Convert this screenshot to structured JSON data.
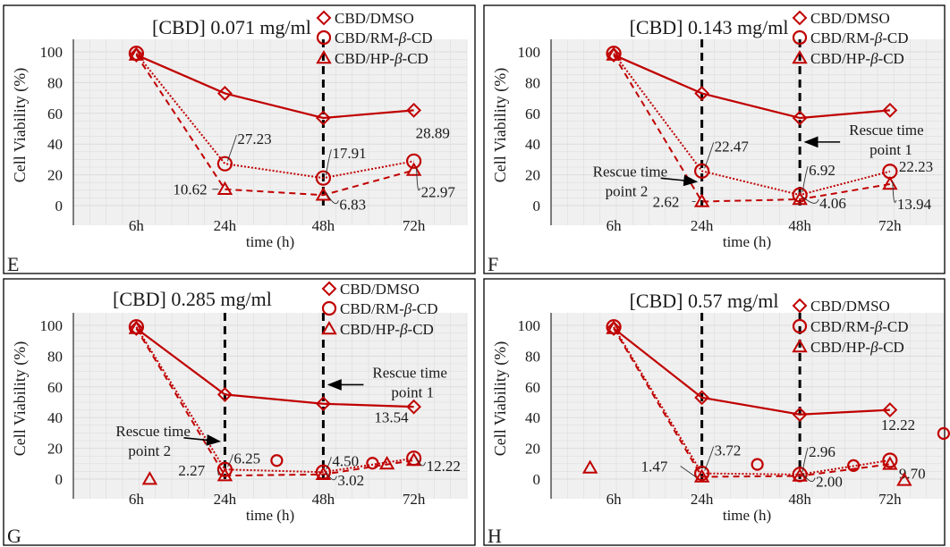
{
  "colors": {
    "series": "#c00000",
    "axis": "#000000",
    "grid": "#dcdcdc",
    "plot_bg": "#f0f0f0"
  },
  "chart_data": [
    {
      "letter": "E",
      "title": "[CBD] 0.071 mg/ml",
      "type": "line",
      "xlabel": "time (h)",
      "ylabel": "Cell Viability (%)",
      "categories": [
        "6h",
        "24h",
        "48h",
        "72h"
      ],
      "yticks": [
        "0",
        "20",
        "40",
        "60",
        "80",
        "100"
      ],
      "ylim": [
        0,
        100
      ],
      "grid": true,
      "legend": {
        "position": "top-right",
        "entries": [
          "CBD/DMSO",
          "CBD/RM-β-CD",
          "CBD/HP-β-CD"
        ]
      },
      "series": [
        {
          "name": "CBD/DMSO",
          "marker": "diamond",
          "line": "solid",
          "values": [
            98,
            73,
            57,
            62
          ]
        },
        {
          "name": "CBD/RM-β-CD",
          "marker": "circle",
          "line": "dotted",
          "values": [
            99,
            27.23,
            17.91,
            28.89
          ]
        },
        {
          "name": "CBD/HP-β-CD",
          "marker": "triangle",
          "line": "dashed",
          "values": [
            98,
            10.62,
            6.83,
            22.97
          ]
        }
      ],
      "rescue_lines": [
        2
      ],
      "annotations": [
        "27.23",
        "17.91",
        "28.89",
        "10.62",
        "6.83",
        "22.97"
      ]
    },
    {
      "letter": "F",
      "title": "[CBD] 0.143 mg/ml",
      "type": "line",
      "xlabel": "time (h)",
      "ylabel": "Cell Viability (%)",
      "categories": [
        "6h",
        "24h",
        "48h",
        "72h"
      ],
      "yticks": [
        "0",
        "20",
        "40",
        "60",
        "80",
        "100"
      ],
      "ylim": [
        0,
        100
      ],
      "grid": true,
      "legend": {
        "position": "top-right",
        "entries": [
          "CBD/DMSO",
          "CBD/RM-β-CD",
          "CBD/HP-β-CD"
        ]
      },
      "series": [
        {
          "name": "CBD/DMSO",
          "marker": "diamond",
          "line": "solid",
          "values": [
            98,
            73,
            57,
            62
          ]
        },
        {
          "name": "CBD/RM-β-CD",
          "marker": "circle",
          "line": "dotted",
          "values": [
            99,
            22.47,
            6.92,
            22.23
          ]
        },
        {
          "name": "CBD/HP-β-CD",
          "marker": "triangle",
          "line": "dashed",
          "values": [
            98,
            2.62,
            4.06,
            13.94
          ]
        }
      ],
      "rescue_lines": [
        1,
        2
      ],
      "rescue_labels": [
        "Rescue time point 1",
        "Rescue time point 2"
      ],
      "annotations": [
        "22.47",
        "6.92",
        "22.23",
        "2.62",
        "4.06",
        "13.94"
      ]
    },
    {
      "letter": "G",
      "title": "[CBD] 0.285 mg/ml",
      "type": "line",
      "xlabel": "time (h)",
      "ylabel": "Cell Viability (%)",
      "categories": [
        "6h",
        "24h",
        "48h",
        "72h"
      ],
      "yticks": [
        "0",
        "20",
        "40",
        "60",
        "80",
        "100"
      ],
      "ylim": [
        0,
        100
      ],
      "grid": true,
      "legend": {
        "position": "top-right",
        "entries": [
          "CBD/DMSO",
          "CBD/RM-β-CD",
          "CBD/HP-β-CD"
        ]
      },
      "series": [
        {
          "name": "CBD/DMSO",
          "marker": "diamond",
          "line": "solid",
          "values": [
            98,
            55,
            49,
            47
          ]
        },
        {
          "name": "CBD/RM-β-CD",
          "marker": "circle",
          "line": "dotted",
          "values": [
            99,
            6.25,
            4.5,
            13.54
          ]
        },
        {
          "name": "CBD/HP-β-CD",
          "marker": "triangle",
          "line": "dashed",
          "values": [
            98,
            2.27,
            3.02,
            12.22
          ]
        }
      ],
      "rescue_lines": [
        1,
        2
      ],
      "rescue_labels": [
        "Rescue time point 1",
        "Rescue time point 2"
      ],
      "annotations": [
        "6.25",
        "4.50",
        "13.54",
        "2.27",
        "3.02",
        "12.22"
      ]
    },
    {
      "letter": "H",
      "title": "[CBD] 0.57 mg/ml",
      "type": "line",
      "xlabel": "time (h)",
      "ylabel": "Cell Viability (%)",
      "categories": [
        "6h",
        "24h",
        "48h",
        "72h"
      ],
      "yticks": [
        "0",
        "20",
        "40",
        "60",
        "80",
        "100"
      ],
      "ylim": [
        0,
        100
      ],
      "grid": true,
      "legend": {
        "position": "top-right",
        "entries": [
          "CBD/DMSO",
          "CBD/RM-β-CD",
          "CBD/HP-β-CD"
        ]
      },
      "series": [
        {
          "name": "CBD/DMSO",
          "marker": "diamond",
          "line": "solid",
          "values": [
            98,
            53,
            42,
            45
          ]
        },
        {
          "name": "CBD/RM-β-CD",
          "marker": "circle",
          "line": "dotted",
          "values": [
            99,
            3.72,
            2.96,
            12.22
          ]
        },
        {
          "name": "CBD/HP-β-CD",
          "marker": "triangle",
          "line": "dashed",
          "values": [
            98,
            1.47,
            2.0,
            9.7
          ]
        }
      ],
      "rescue_lines": [
        1,
        2
      ],
      "annotations": [
        "3.72",
        "2.96",
        "12.22",
        "1.47",
        "2.00",
        "9.70"
      ]
    }
  ]
}
